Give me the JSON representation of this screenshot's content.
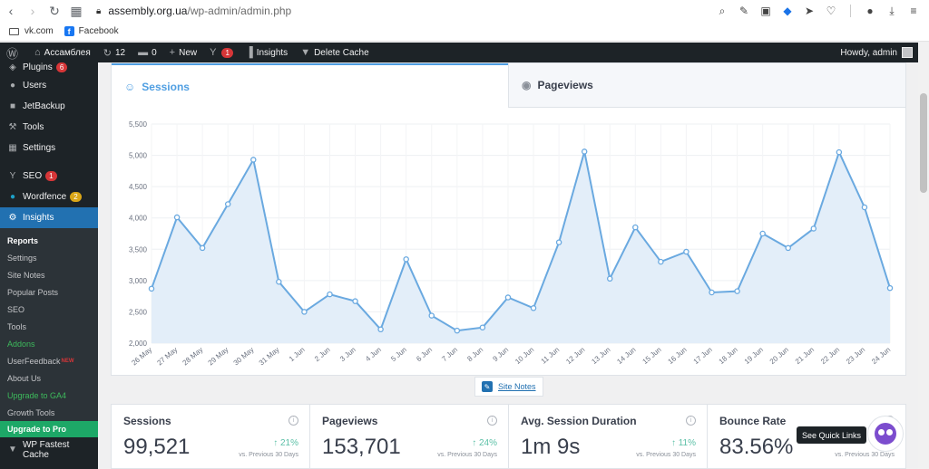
{
  "browser": {
    "url_host": "assembly.org.ua",
    "url_path": "/wp-admin/admin.php",
    "bookmarks": [
      {
        "label": "vk.com",
        "icon": "folder-icon"
      },
      {
        "label": "Facebook",
        "icon": "facebook-icon"
      }
    ]
  },
  "admin_bar": {
    "site_name": "Ассамблея",
    "updates_count": "12",
    "comments_count": "0",
    "new_label": "New",
    "yoast_count": "1",
    "insights_label": "Insights",
    "delete_cache_label": "Delete Cache",
    "howdy": "Howdy, admin"
  },
  "sidebar": {
    "items": [
      {
        "label": "Plugins",
        "icon": "plugin-icon",
        "badge": "6"
      },
      {
        "label": "Users",
        "icon": "users-icon"
      },
      {
        "label": "JetBackup",
        "icon": "backup-icon"
      },
      {
        "label": "Tools",
        "icon": "tools-icon"
      },
      {
        "label": "Settings",
        "icon": "settings-icon"
      },
      {
        "label": "SEO",
        "icon": "yoast-icon",
        "badge": "1"
      },
      {
        "label": "Wordfence",
        "icon": "wordfence-icon",
        "badge": "2"
      },
      {
        "label": "Insights",
        "icon": "insights-icon"
      }
    ],
    "submenu": [
      {
        "label": "Reports"
      },
      {
        "label": "Settings"
      },
      {
        "label": "Site Notes"
      },
      {
        "label": "Popular Posts"
      },
      {
        "label": "SEO"
      },
      {
        "label": "Tools"
      },
      {
        "label": "Addons"
      },
      {
        "label": "UserFeedback",
        "sup": "NEW"
      },
      {
        "label": "About Us"
      },
      {
        "label": "Upgrade to GA4"
      },
      {
        "label": "Growth Tools"
      },
      {
        "label": "Upgrade to Pro"
      }
    ],
    "bottom_item": {
      "label": "WP Fastest Cache",
      "icon": "cache-icon"
    }
  },
  "tabs": {
    "sessions": "Sessions",
    "pageviews": "Pageviews"
  },
  "chart_data": {
    "type": "area",
    "x": [
      "26 May",
      "27 May",
      "28 May",
      "29 May",
      "30 May",
      "31 May",
      "1 Jun",
      "2 Jun",
      "3 Jun",
      "4 Jun",
      "5 Jun",
      "6 Jun",
      "7 Jun",
      "8 Jun",
      "9 Jun",
      "10 Jun",
      "11 Jun",
      "12 Jun",
      "13 Jun",
      "14 Jun",
      "15 Jun",
      "16 Jun",
      "17 Jun",
      "18 Jun",
      "19 Jun",
      "20 Jun",
      "21 Jun",
      "22 Jun",
      "23 Jun",
      "24 Jun"
    ],
    "series": [
      {
        "values": [
          2870,
          4010,
          3520,
          4220,
          4930,
          2980,
          2500,
          2780,
          2670,
          2220,
          3340,
          2440,
          2200,
          2250,
          2730,
          2560,
          3610,
          5060,
          3030,
          3850,
          3300,
          3460,
          2810,
          2830,
          3750,
          3520,
          3830,
          5050,
          4170,
          2880
        ]
      }
    ],
    "ylim": [
      2000,
      5500
    ],
    "yticks": [
      "2,000",
      "2,500",
      "3,000",
      "3,500",
      "4,000",
      "4,500",
      "5,000",
      "5,500"
    ],
    "grid": true,
    "line_color": "#6aa9e0",
    "fill_color": "#e3eef9"
  },
  "site_notes_label": "Site Notes",
  "stats": [
    {
      "title": "Sessions",
      "value": "99,521",
      "change": "21%",
      "prev": "vs. Previous 30 Days"
    },
    {
      "title": "Pageviews",
      "value": "153,701",
      "change": "24%",
      "prev": "vs. Previous 30 Days"
    },
    {
      "title": "Avg. Session Duration",
      "value": "1m 9s",
      "change": "11%",
      "prev": "vs. Previous 30 Days"
    },
    {
      "title": "Bounce Rate",
      "value": "83.56%",
      "change": "",
      "prev": "vs. Previous 30 Days"
    }
  ],
  "quick_links_label": "See Quick Links"
}
